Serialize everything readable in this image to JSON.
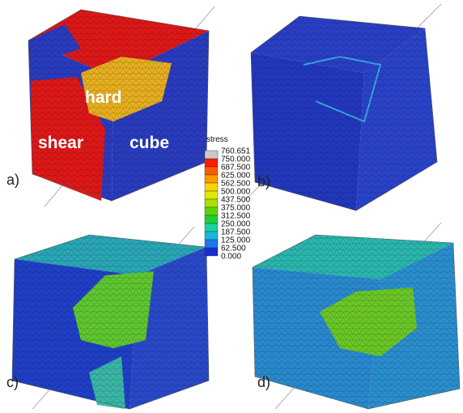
{
  "panels": [
    {
      "label": "a)",
      "grains": [
        "hard",
        "shear",
        "cube"
      ]
    },
    {
      "label": "b)"
    },
    {
      "label": "c)"
    },
    {
      "label": "d)"
    }
  ],
  "legend": {
    "title": "stress",
    "labels": [
      "760.651",
      "750.000",
      "687.500",
      "625.000",
      "562.500",
      "500.000",
      "437.500",
      "375.000",
      "312.500",
      "250.000",
      "187.500",
      "125.000",
      "62.500",
      "0.000"
    ],
    "colors": [
      "#c8c8c8",
      "#ff1a00",
      "#ff5a00",
      "#ff9a00",
      "#ffd200",
      "#e0e800",
      "#a8e000",
      "#5cd400",
      "#1ecf3a",
      "#1ad0a0",
      "#14b8e0",
      "#1a78e8",
      "#1a2ad0"
    ]
  }
}
